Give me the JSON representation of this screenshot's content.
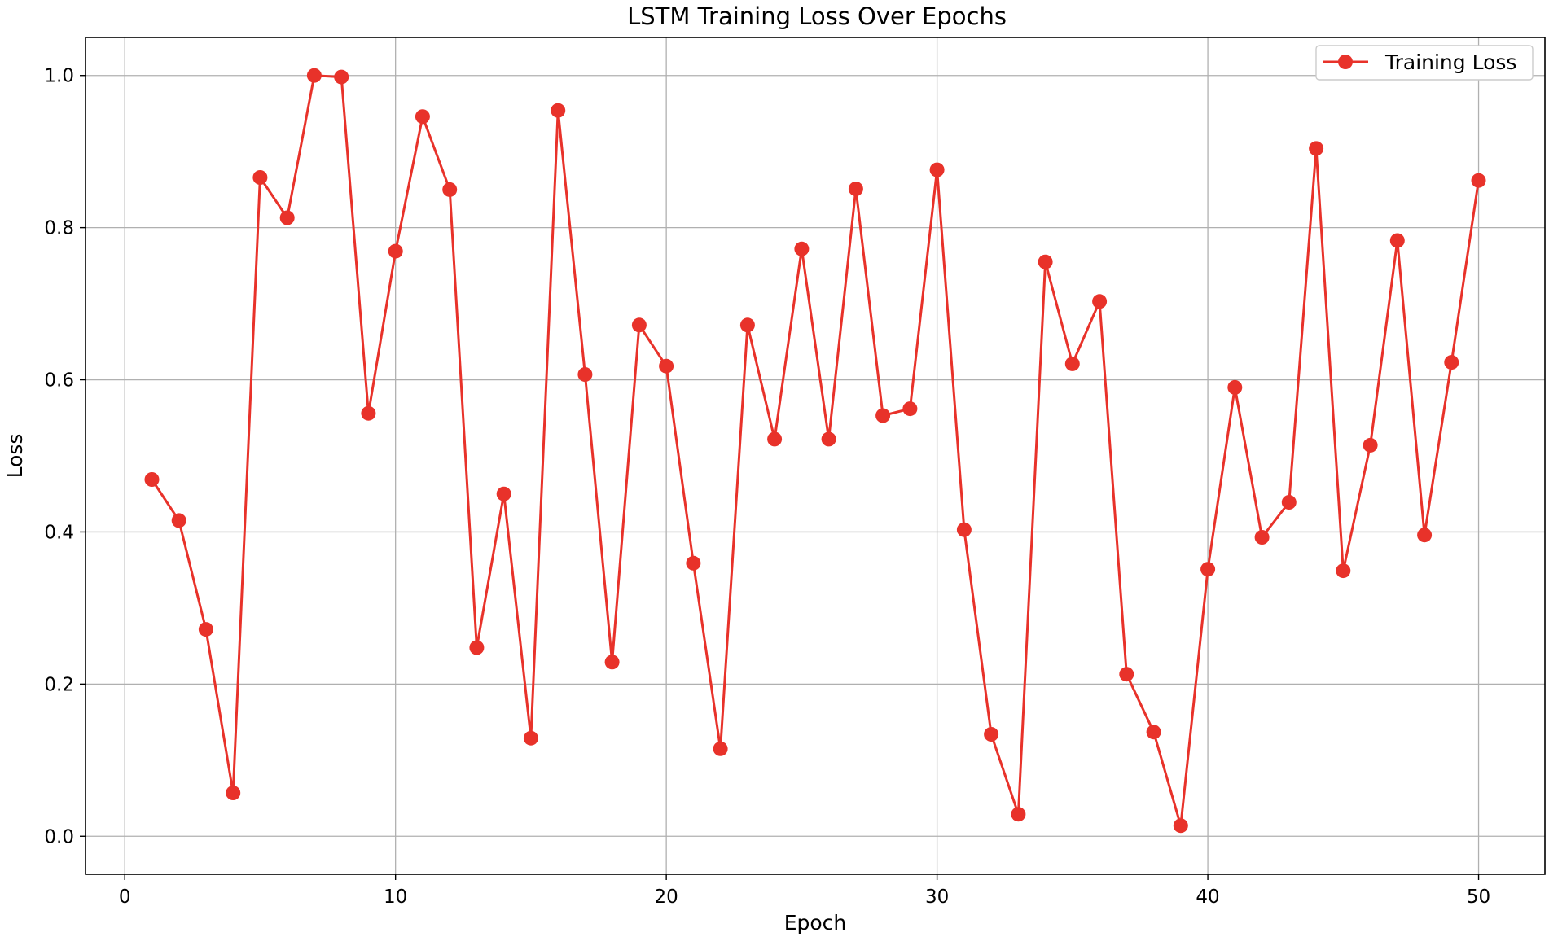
{
  "chart_data": {
    "type": "line",
    "title": "LSTM Training Loss Over Epochs",
    "xlabel": "Epoch",
    "ylabel": "Loss",
    "xlim": [
      -1.45,
      52.45
    ],
    "ylim": [
      -0.05,
      1.05
    ],
    "xticks": [
      0,
      10,
      20,
      30,
      40,
      50
    ],
    "yticks": [
      0.0,
      0.2,
      0.4,
      0.6,
      0.8,
      1.0
    ],
    "grid": true,
    "legend": {
      "position": "top-right",
      "entries": [
        "Training Loss"
      ]
    },
    "series": [
      {
        "name": "Training Loss",
        "color": "#e8322a",
        "marker": "circle",
        "x": [
          1,
          2,
          3,
          4,
          5,
          6,
          7,
          8,
          9,
          10,
          11,
          12,
          13,
          14,
          15,
          16,
          17,
          18,
          19,
          20,
          21,
          22,
          23,
          24,
          25,
          26,
          27,
          28,
          29,
          30,
          31,
          32,
          33,
          34,
          35,
          36,
          37,
          38,
          39,
          40,
          41,
          42,
          43,
          44,
          45,
          46,
          47,
          48,
          49,
          50
        ],
        "y": [
          0.469,
          0.415,
          0.272,
          0.057,
          0.866,
          0.813,
          1.0,
          0.998,
          0.556,
          0.769,
          0.946,
          0.85,
          0.248,
          0.45,
          0.129,
          0.954,
          0.607,
          0.229,
          0.672,
          0.618,
          0.359,
          0.115,
          0.672,
          0.522,
          0.772,
          0.522,
          0.851,
          0.553,
          0.562,
          0.876,
          0.403,
          0.134,
          0.029,
          0.755,
          0.621,
          0.703,
          0.213,
          0.137,
          0.014,
          0.351,
          0.59,
          0.393,
          0.439,
          0.904,
          0.349,
          0.514,
          0.783,
          0.396,
          0.623,
          0.862
        ]
      }
    ]
  }
}
